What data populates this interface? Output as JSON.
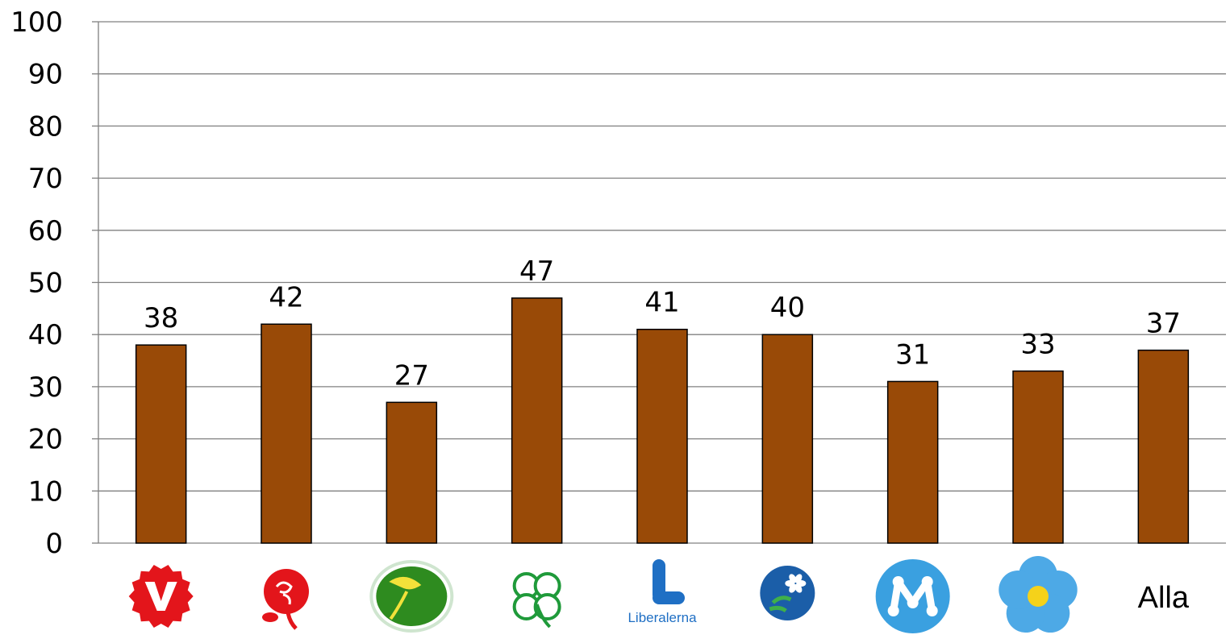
{
  "chart_data": {
    "type": "bar",
    "categories": [
      "V-logo",
      "S-logo",
      "MP-logo",
      "C-logo",
      "L-logo",
      "KD-logo",
      "M-logo",
      "SD-logo",
      "Alla"
    ],
    "category_display": [
      {
        "kind": "logo",
        "icon": "vansterpartiet-logo-icon",
        "color": "#e3151b",
        "text": ""
      },
      {
        "kind": "logo",
        "icon": "socialdemokraterna-rose-icon",
        "color": "#e3151b",
        "text": ""
      },
      {
        "kind": "logo",
        "icon": "miljopartiet-dandelion-icon",
        "color": "#2e8b1f",
        "text": ""
      },
      {
        "kind": "logo",
        "icon": "centerpartiet-clover-icon",
        "color": "#1f9a3a",
        "text": ""
      },
      {
        "kind": "logo",
        "icon": "liberalerna-logo-icon",
        "color": "#1f6fc4",
        "text": "Liberalerna"
      },
      {
        "kind": "logo",
        "icon": "kristdemokraterna-anemone-icon",
        "color": "#1b5ea8",
        "text": ""
      },
      {
        "kind": "logo",
        "icon": "moderaterna-m-icon",
        "color": "#3aa0e0",
        "text": ""
      },
      {
        "kind": "logo",
        "icon": "sverigedemokraterna-flower-icon",
        "color": "#4da9e6",
        "text": ""
      },
      {
        "kind": "text",
        "icon": "",
        "color": "#000000",
        "text": "Alla"
      }
    ],
    "values": [
      38,
      42,
      27,
      47,
      41,
      40,
      31,
      33,
      37
    ],
    "data_labels": [
      "38",
      "42",
      "27",
      "47",
      "41",
      "40",
      "31",
      "33",
      "37"
    ],
    "ylim": [
      0,
      100
    ],
    "yticks": [
      "0",
      "10",
      "20",
      "30",
      "40",
      "50",
      "60",
      "70",
      "80",
      "90",
      "100"
    ],
    "bar_color": "#994a07",
    "gridline_color": "#808080",
    "grid": true,
    "title": "",
    "xlabel": "",
    "ylabel": ""
  }
}
